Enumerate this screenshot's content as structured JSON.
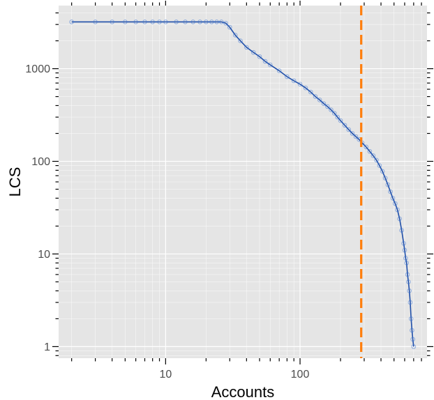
{
  "chart_data": {
    "type": "line",
    "title": "",
    "xlabel": "Accounts",
    "ylabel": "LCS",
    "x_scale": "log10",
    "y_scale": "log10",
    "xlim": [
      1.6,
      880
    ],
    "ylim": [
      0.75,
      4800
    ],
    "x_ticks": [
      {
        "value": 10,
        "label": "10"
      },
      {
        "value": 100,
        "label": "100"
      }
    ],
    "y_ticks": [
      {
        "value": 1,
        "label": "1"
      },
      {
        "value": 10,
        "label": "10"
      },
      {
        "value": 100,
        "label": "100"
      },
      {
        "value": 1000,
        "label": "1000"
      }
    ],
    "grid": true,
    "legend": "none",
    "colors": {
      "panel": "#e5e5e5",
      "grid": "#ffffff",
      "line": "#1f4ea8",
      "points": "#3f78d6",
      "vline": "#ff7f0e",
      "axis": "#000000"
    },
    "vline": {
      "x": 285,
      "style": "dashed"
    },
    "series": [
      {
        "x": [
          2,
          3,
          4,
          5,
          6,
          7,
          8,
          9,
          10,
          12,
          14,
          16,
          18,
          20,
          22,
          24,
          26,
          28,
          30,
          33,
          36,
          40,
          45,
          50,
          55,
          60,
          70,
          80,
          90,
          100,
          110,
          120,
          130,
          140,
          150,
          160,
          170,
          180,
          190,
          200,
          215,
          230,
          245,
          260,
          275,
          290,
          310,
          330,
          350,
          370,
          390,
          410,
          430,
          450,
          470,
          490,
          510,
          530,
          550,
          570,
          590,
          600,
          610,
          620,
          630,
          640,
          650,
          660,
          670,
          680,
          690,
          700
        ],
        "y": [
          3200,
          3200,
          3200,
          3200,
          3200,
          3200,
          3200,
          3200,
          3200,
          3200,
          3200,
          3200,
          3200,
          3200,
          3200,
          3200,
          3200,
          3100,
          2800,
          2300,
          2000,
          1700,
          1500,
          1350,
          1200,
          1100,
          950,
          820,
          740,
          680,
          620,
          560,
          500,
          460,
          420,
          390,
          360,
          330,
          300,
          275,
          245,
          220,
          200,
          185,
          172,
          158,
          143,
          128,
          115,
          103,
          90,
          78,
          66,
          56,
          47,
          40,
          35,
          30,
          24,
          18,
          13,
          11,
          9,
          8,
          6,
          5,
          4,
          3,
          2,
          1.5,
          1.2,
          1
        ]
      }
    ]
  }
}
